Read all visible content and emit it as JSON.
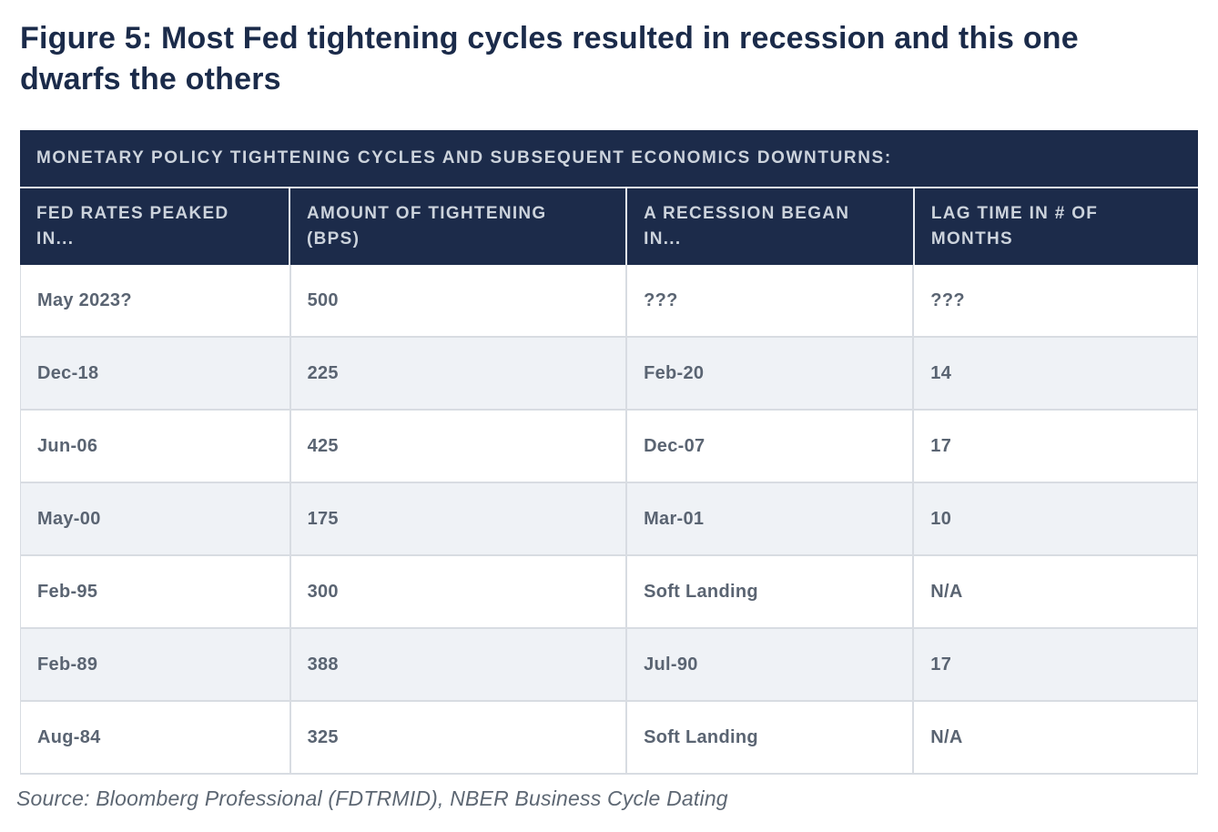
{
  "figure": {
    "title": "Figure 5: Most Fed tightening cycles resulted in recession and this one dwarfs the others",
    "source": "Source: Bloomberg Professional (FDTRMID), NBER Business Cycle Dating"
  },
  "table": {
    "banner": "MONETARY POLICY TIGHTENING CYCLES AND SUBSEQUENT ECONOMICS DOWNTURNS:",
    "columns": [
      "FED RATES PEAKED IN...",
      "AMOUNT OF TIGHTENING (BPS)",
      "A RECESSION BEGAN IN...",
      "LAG TIME IN # OF MONTHS"
    ],
    "rows": [
      [
        "May 2023?",
        "500",
        "???",
        "???"
      ],
      [
        "Dec-18",
        "225",
        "Feb-20",
        "14"
      ],
      [
        "Jun-06",
        "425",
        "Dec-07",
        "17"
      ],
      [
        "May-00",
        "175",
        "Mar-01",
        "10"
      ],
      [
        "Feb-95",
        "300",
        "Soft Landing",
        "N/A"
      ],
      [
        "Feb-89",
        "388",
        "Jul-90",
        "17"
      ],
      [
        "Aug-84",
        "325",
        "Soft Landing",
        "N/A"
      ]
    ]
  },
  "chart_data": {
    "type": "table",
    "title": "MONETARY POLICY TIGHTENING CYCLES AND SUBSEQUENT ECONOMICS DOWNTURNS:",
    "caption": "Figure 5: Most Fed tightening cycles resulted in recession and this one dwarfs the others",
    "columns": [
      "FED RATES PEAKED IN...",
      "AMOUNT OF TIGHTENING (BPS)",
      "A RECESSION BEGAN IN...",
      "LAG TIME IN # OF MONTHS"
    ],
    "rows": [
      [
        "May 2023?",
        "500",
        "???",
        "???"
      ],
      [
        "Dec-18",
        "225",
        "Feb-20",
        "14"
      ],
      [
        "Jun-06",
        "425",
        "Dec-07",
        "17"
      ],
      [
        "May-00",
        "175",
        "Mar-01",
        "10"
      ],
      [
        "Feb-95",
        "300",
        "Soft Landing",
        "N/A"
      ],
      [
        "Feb-89",
        "388",
        "Jul-90",
        "17"
      ],
      [
        "Aug-84",
        "325",
        "Soft Landing",
        "N/A"
      ]
    ],
    "source": "Source: Bloomberg Professional (FDTRMID), NBER Business Cycle Dating",
    "layout": {
      "zebra_striping": true,
      "striped_row_indexes": [
        1,
        3,
        5
      ]
    }
  },
  "colors": {
    "header_navy": "#1c2b4a",
    "header_text": "#ccd3dc",
    "body_text": "#5a6472",
    "stripe_bg": "#eff2f6",
    "grid_line": "#d8dce2",
    "title_text": "#1b2b4a",
    "source_text": "#5d6773"
  }
}
